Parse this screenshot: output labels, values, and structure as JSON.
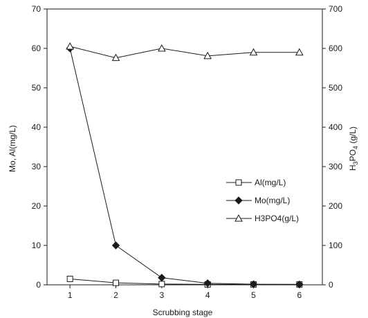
{
  "chart_data": {
    "type": "line",
    "title": "",
    "xlabel": "Scrubbing stage",
    "ylabel_left": "Mo, Al(mg/L)",
    "ylabel_right": "H3PO4 (g/L)",
    "categories": [
      1,
      2,
      3,
      4,
      5,
      6
    ],
    "x_ticks": [
      "1",
      "2",
      "3",
      "4",
      "5",
      "6"
    ],
    "ylim_left": [
      0,
      70
    ],
    "y_ticks_left": [
      "0",
      "10",
      "20",
      "30",
      "40",
      "50",
      "60",
      "70"
    ],
    "ylim_right": [
      0,
      700
    ],
    "y_ticks_right": [
      "0",
      "100",
      "200",
      "300",
      "400",
      "500",
      "600",
      "700"
    ],
    "grid": false,
    "legend_position": "right-middle",
    "series": [
      {
        "name": "Al(mg/L)",
        "axis": "left",
        "marker": "open-square",
        "values": [
          1.5,
          0.5,
          0.2,
          0.1,
          0.1,
          0.1
        ]
      },
      {
        "name": "Mo(mg/L)",
        "axis": "left",
        "marker": "filled-diamond",
        "values": [
          60,
          10,
          1.8,
          0.4,
          0.15,
          0.1
        ]
      },
      {
        "name": "H3PO4(g/L)",
        "axis": "right",
        "marker": "open-triangle",
        "values": [
          605,
          576,
          600,
          581,
          590,
          590
        ]
      }
    ],
    "colors": {
      "line": "#1a1a1a",
      "axis": "#1a1a1a",
      "background": "#ffffff"
    }
  }
}
